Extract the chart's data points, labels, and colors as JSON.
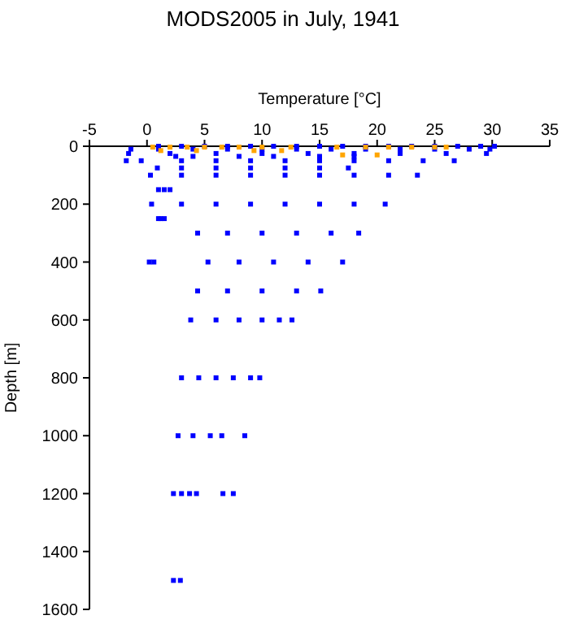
{
  "chart_data": {
    "type": "scatter",
    "title": "MODS2005 in July, 1941",
    "xlabel": "Temperature [°C]",
    "ylabel": "Depth [m]",
    "xlim": [
      -5,
      35
    ],
    "xticks": [
      -5,
      0,
      5,
      10,
      15,
      20,
      25,
      30,
      35
    ],
    "ylim": [
      1600,
      0
    ],
    "yticks": [
      0,
      200,
      400,
      600,
      800,
      1000,
      1200,
      1400,
      1600
    ],
    "marker": "square",
    "series": [
      {
        "color": "#0000ff",
        "x": [
          1,
          3,
          5,
          7,
          9,
          11,
          13,
          15,
          17,
          19,
          21,
          23,
          25,
          27,
          29,
          30.2,
          -1.4,
          1,
          4,
          7,
          10,
          13,
          16,
          19,
          22,
          25,
          28,
          29.8,
          -1.6,
          2,
          6,
          10,
          14,
          18,
          22,
          26,
          29.5,
          2.5,
          4,
          8,
          11,
          15,
          18,
          -1.8,
          -0.5,
          3,
          6,
          9,
          12,
          15,
          18,
          21,
          24,
          26.7,
          0.9,
          3,
          6,
          9,
          12,
          15,
          17.5,
          0.3,
          3,
          6,
          9,
          12,
          15,
          18,
          21,
          23.5,
          1,
          1.5,
          2,
          0.4,
          3,
          6,
          9,
          12,
          15,
          18,
          20.7,
          1,
          1.2,
          1.5,
          4.4,
          7,
          10,
          13,
          16,
          18.4,
          0.2,
          0.6,
          5.3,
          8,
          11,
          14,
          17,
          4.4,
          7,
          10,
          13,
          15.1,
          3.8,
          6,
          8,
          10,
          11.5,
          12.6,
          3,
          4.5,
          6,
          7.5,
          9,
          9.8,
          2.7,
          4,
          5.5,
          6.5,
          8.5,
          2.3,
          3,
          3.7,
          4.3,
          6.6,
          7.5,
          2.3,
          2.9
        ],
        "values": [
          0,
          0,
          0,
          0,
          0,
          0,
          0,
          0,
          0,
          0,
          0,
          0,
          0,
          0,
          0,
          0,
          10,
          10,
          10,
          10,
          10,
          10,
          10,
          10,
          10,
          10,
          10,
          10,
          25,
          25,
          25,
          25,
          25,
          25,
          25,
          25,
          25,
          35,
          35,
          35,
          35,
          35,
          35,
          50,
          50,
          50,
          50,
          50,
          50,
          50,
          50,
          50,
          50,
          50,
          75,
          75,
          75,
          75,
          75,
          75,
          75,
          100,
          100,
          100,
          100,
          100,
          100,
          100,
          100,
          100,
          150,
          150,
          150,
          200,
          200,
          200,
          200,
          200,
          200,
          200,
          200,
          250,
          250,
          250,
          300,
          300,
          300,
          300,
          300,
          300,
          400,
          400,
          400,
          400,
          400,
          400,
          400,
          500,
          500,
          500,
          500,
          500,
          600,
          600,
          600,
          600,
          600,
          600,
          800,
          800,
          800,
          800,
          800,
          800,
          1000,
          1000,
          1000,
          1000,
          1000,
          1200,
          1200,
          1200,
          1200,
          1200,
          1200,
          1500,
          1500
        ]
      },
      {
        "color": "#ffa500",
        "x": [
          0.5,
          2,
          3.5,
          5,
          6.5,
          8,
          10,
          12.5,
          16.5,
          19,
          21,
          23,
          25,
          26,
          1.2,
          4.3,
          9.3,
          11.7,
          17,
          20
        ],
        "values": [
          3,
          3,
          3,
          3,
          3,
          3,
          3,
          3,
          3,
          3,
          3,
          3,
          3,
          3,
          15,
          15,
          15,
          15,
          30,
          30
        ]
      }
    ]
  }
}
